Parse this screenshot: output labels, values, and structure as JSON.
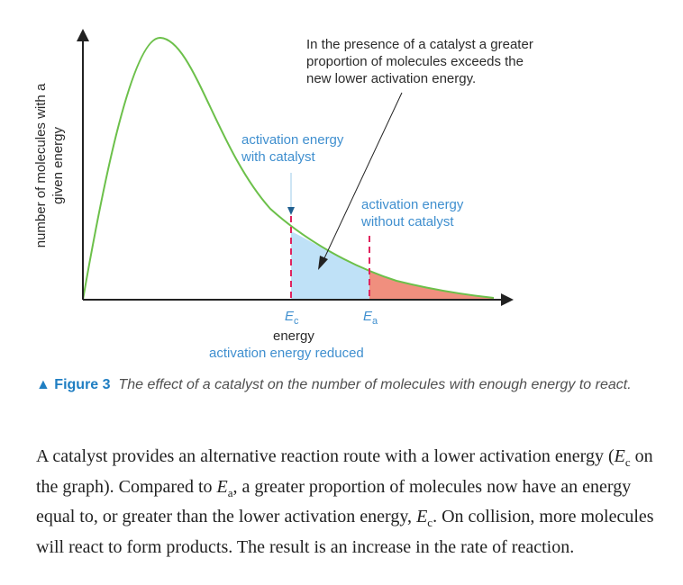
{
  "figure": {
    "y_axis_label_line1": "number of molecules with a",
    "y_axis_label_line2": "given energy",
    "x_axis_label": "energy",
    "x_axis_sublabel": "activation energy reduced",
    "ec_label_main": "E",
    "ec_label_sub": "c",
    "ea_label_main": "E",
    "ea_label_sub": "a",
    "annotation_lines": [
      "In the presence of a catalyst a greater",
      "proportion of molecules exceeds the",
      "new lower activation energy."
    ],
    "with_catalyst_lines": [
      "activation energy",
      "with catalyst"
    ],
    "without_catalyst_lines": [
      "activation energy",
      "without catalyst"
    ],
    "colors": {
      "curve": "#6cc04a",
      "catalyst_fill": "#bfe1f7",
      "no_catalyst_fill": "#f08f7e",
      "marker": "#e0245e",
      "blue_text": "#3f8fcf"
    }
  },
  "caption": {
    "figure_label": "Figure 3",
    "text": "The effect of a catalyst on the number of molecules with enough energy to react."
  },
  "body": {
    "s1": "A catalyst provides an alternative reaction route with a lower activation energy (",
    "s2": "E",
    "s3": "c",
    "s4": " on the graph). Compared to ",
    "s5": "E",
    "s6": "a",
    "s7": ", a greater proportion of molecules now have an energy equal to, or greater than the lower activation energy, ",
    "s8": "E",
    "s9": "c",
    "s10": ". On collision, more molecules will react to form products. The result is an increase in the rate of reaction."
  }
}
